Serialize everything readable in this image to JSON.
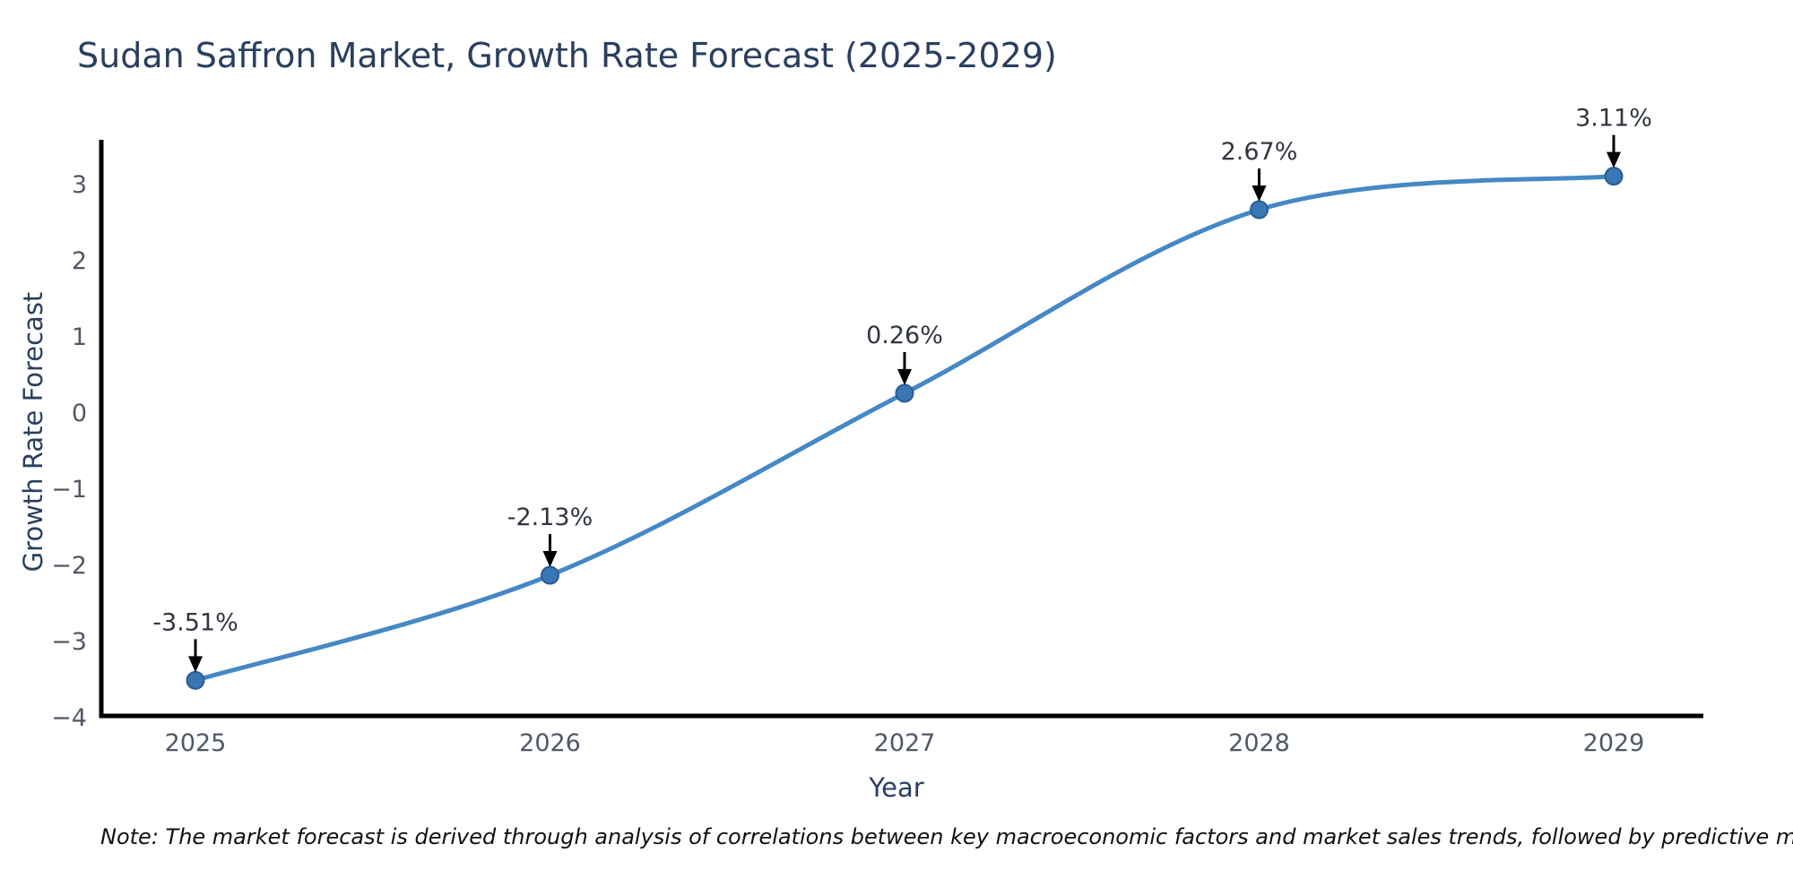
{
  "chart_data": {
    "type": "line",
    "title": "Sudan Saffron Market, Growth Rate Forecast (2025-2029)",
    "xlabel": "Year",
    "ylabel": "Growth Rate Forecast",
    "categories": [
      "2025",
      "2026",
      "2027",
      "2028",
      "2029"
    ],
    "series": [
      {
        "name": "Growth Rate Forecast",
        "values": [
          -3.51,
          -2.13,
          0.26,
          2.67,
          3.11
        ]
      }
    ],
    "point_labels": [
      "-3.51%",
      "-2.13%",
      "0.26%",
      "2.67%",
      "3.11%"
    ],
    "yticks": [
      3,
      2,
      1,
      0,
      -1,
      -2,
      -3,
      -4
    ],
    "ylim": [
      -4.0,
      3.56
    ],
    "grid": false,
    "legend_position": "none",
    "line_shape": "spline",
    "annotations_have_arrows": true,
    "colors": {
      "line": "#4588c5",
      "marker_fill": "#3876b4",
      "marker_border": "#2a5d94",
      "axis_line": "#000000",
      "tick_text": "#4f5966",
      "heading_text": "#2a3f5f",
      "annotation_text": "#303640",
      "arrow": "#000000",
      "background": "#ffffff"
    }
  },
  "footnote": "Note: The market forecast is derived through analysis of correlations between key macroeconomic factors and market sales trends, followed by predictive modeling to project future sales trends."
}
